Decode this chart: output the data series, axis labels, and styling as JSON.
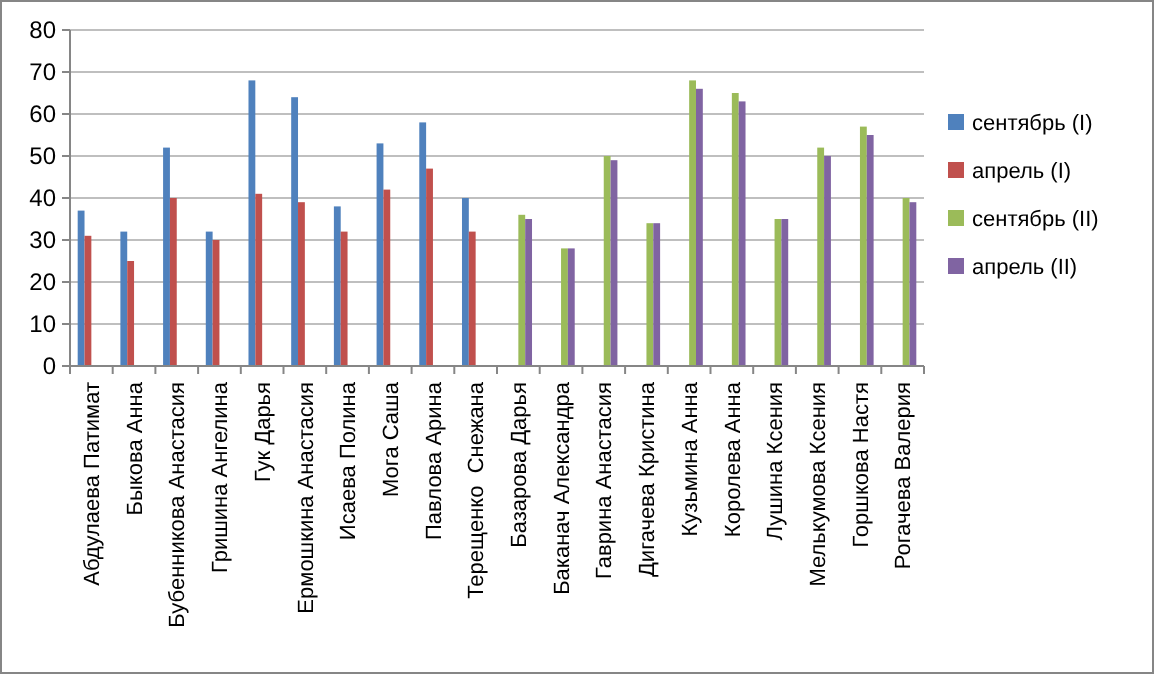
{
  "chart_data": {
    "type": "bar",
    "categories": [
      "Абдулаева Патимат",
      "Быкова Анна",
      "Бубенникова Анастасия",
      "Гришина Ангелина",
      "Гук Дарья",
      "Ермошкина Анастасия",
      "Исаева Полина",
      "Мога Саша",
      "Павлова Арина",
      "Терещенко  Снежана",
      "Базарова Дарья",
      "Баканач Александра",
      "Гаврина Анастасия",
      "Дигачева Кристина",
      "Кузьмина Анна",
      "Королева Анна",
      "Лушина Ксения",
      "Мелькумова Ксения",
      "Горшкова Настя",
      "Рогачева Валерия"
    ],
    "series": [
      {
        "name": "сентябрь (I)",
        "color": "#4f81bd",
        "values": [
          37,
          32,
          52,
          32,
          68,
          64,
          38,
          53,
          58,
          40,
          null,
          null,
          null,
          null,
          null,
          null,
          null,
          null,
          null,
          null
        ]
      },
      {
        "name": "апрель (I)",
        "color": "#c0504d",
        "values": [
          31,
          25,
          40,
          30,
          41,
          39,
          32,
          42,
          47,
          32,
          null,
          null,
          null,
          null,
          null,
          null,
          null,
          null,
          null,
          null
        ]
      },
      {
        "name": "сентябрь (II)",
        "color": "#9bbb59",
        "values": [
          null,
          null,
          null,
          null,
          null,
          null,
          null,
          null,
          null,
          null,
          36,
          28,
          50,
          34,
          68,
          65,
          35,
          52,
          57,
          40
        ]
      },
      {
        "name": "апрель (II)",
        "color": "#8064a2",
        "values": [
          null,
          null,
          null,
          null,
          null,
          null,
          null,
          null,
          null,
          null,
          35,
          28,
          49,
          34,
          66,
          63,
          35,
          50,
          55,
          39
        ]
      }
    ],
    "ylim": [
      0,
      80
    ],
    "yticks": [
      0,
      10,
      20,
      30,
      40,
      50,
      60,
      70,
      80
    ],
    "grid": "y",
    "legend": "right"
  }
}
